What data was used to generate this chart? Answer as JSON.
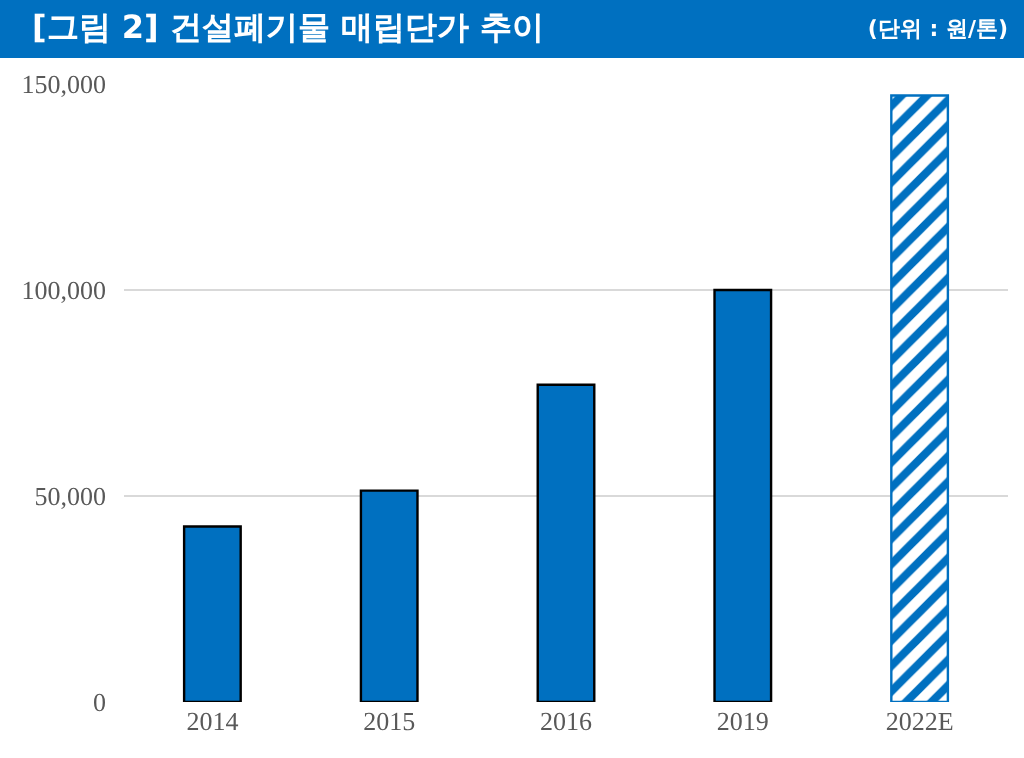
{
  "chart_data": {
    "type": "bar",
    "title": "[그림 2] 건설폐기물 매립단가 추이",
    "subtitle": "(단위 : 원/톤)",
    "categories": [
      "2014",
      "2015",
      "2016",
      "2019",
      "2022E"
    ],
    "series": [
      {
        "color": "#0070c0",
        "values": [
          42600,
          51300,
          77000,
          100000,
          null
        ]
      },
      {
        "color": "#0070c0",
        "values": [
          null,
          null,
          null,
          null,
          147200
        ]
      }
    ],
    "ylim": [
      0,
      150000
    ],
    "yticks": [
      0,
      {
        "value": 50000,
        "label": "50,000"
      },
      {
        "value": 100000,
        "label": "100,000"
      },
      {
        "value": 150000,
        "label": "150,000"
      }
    ],
    "grid": "y"
  }
}
